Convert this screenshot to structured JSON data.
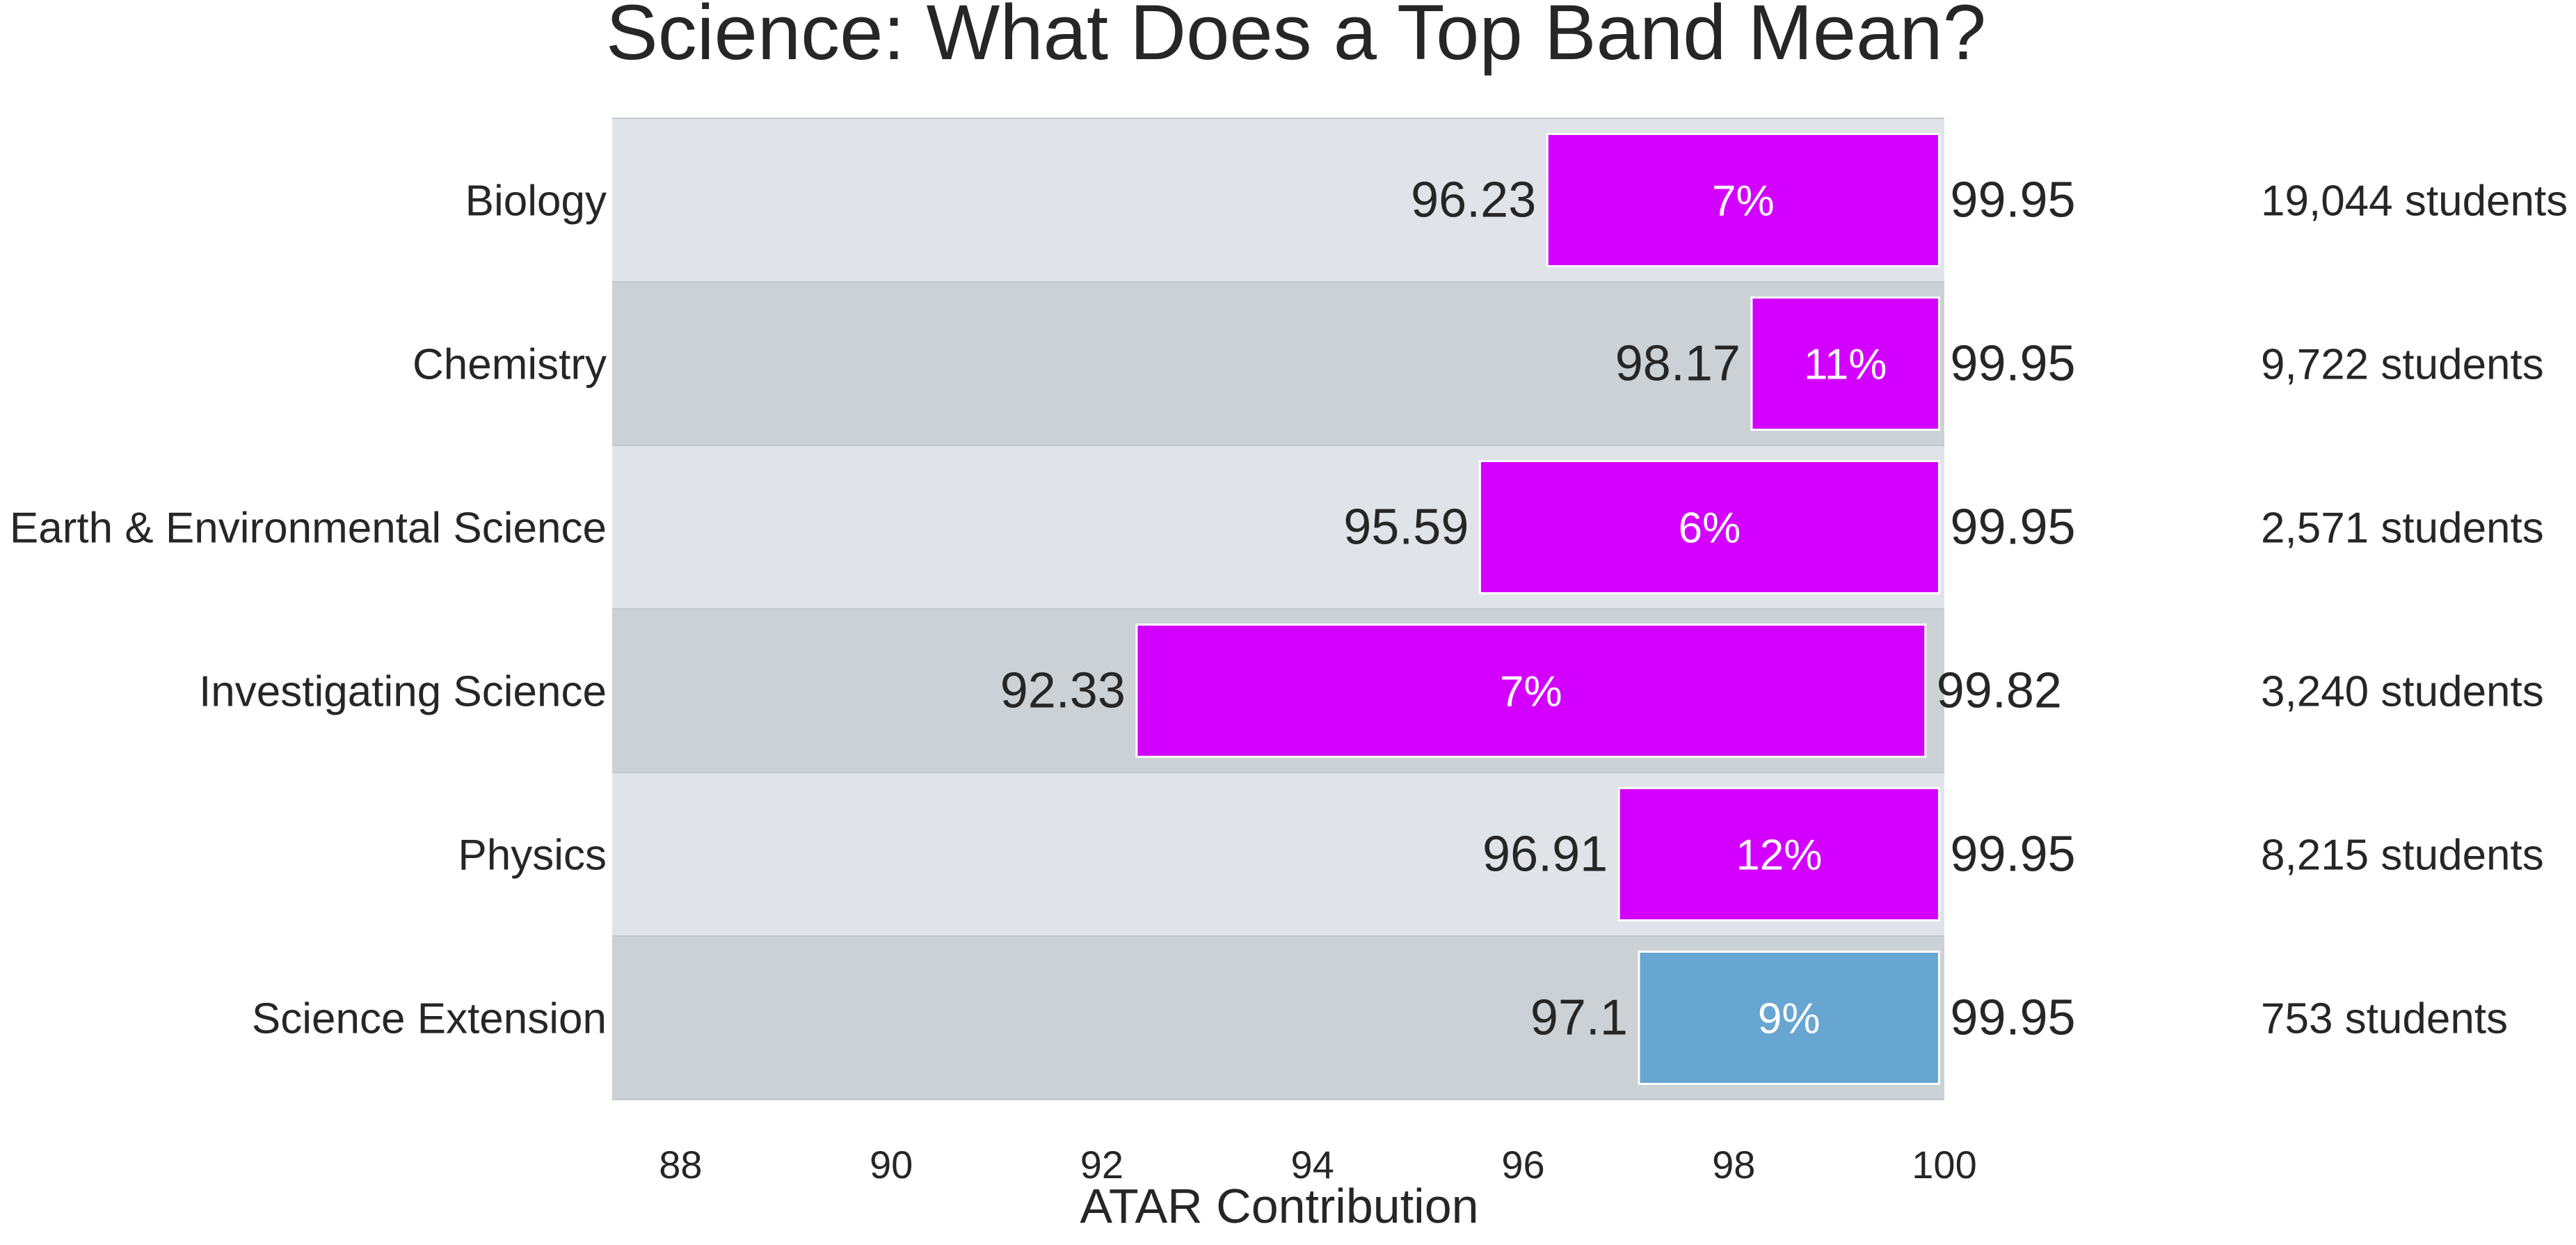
{
  "chart_data": {
    "type": "bar",
    "orientation": "horizontal",
    "title": "Science: What Does a Top Band Mean?",
    "xlabel": "ATAR Contribution",
    "ylabel": "",
    "xlim": [
      87.35,
      100
    ],
    "xticks": [
      88,
      90,
      92,
      94,
      96,
      98,
      100
    ],
    "grid": false,
    "categories": [
      "Biology",
      "Chemistry",
      "Earth & Environmental Science",
      "Investigating Science",
      "Physics",
      "Science Extension"
    ],
    "series": [
      {
        "name": "Top band ATAR contribution range",
        "low": [
          96.23,
          98.17,
          95.59,
          92.33,
          96.91,
          97.1
        ],
        "high": [
          99.95,
          99.95,
          99.95,
          99.82,
          99.95,
          99.95
        ],
        "low_labels": [
          "96.23",
          "98.17",
          "95.59",
          "92.33",
          "96.91",
          "97.1"
        ],
        "high_labels": [
          "99.95",
          "99.95",
          "99.95",
          "99.82",
          "99.95",
          "99.95"
        ],
        "percent_labels": [
          "7%",
          "11%",
          "6%",
          "7%",
          "12%",
          "9%"
        ],
        "student_labels": [
          "19,044 students",
          "9,722 students",
          "2,571 students",
          "3,240 students",
          "8,215 students",
          "753 students"
        ],
        "bar_colors": [
          "#d400ff",
          "#d400ff",
          "#d400ff",
          "#d400ff",
          "#d400ff",
          "#68a6d2"
        ]
      }
    ],
    "row_background_colors": [
      "#e0e3e8",
      "#ccd1d5"
    ]
  }
}
